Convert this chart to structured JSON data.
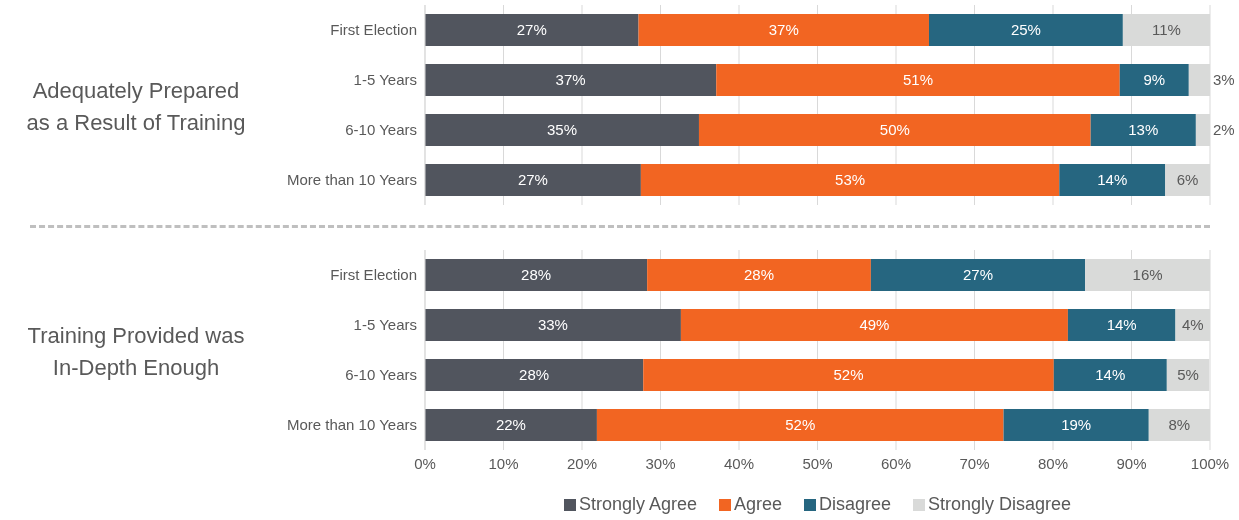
{
  "chart_data": [
    {
      "type": "bar",
      "orientation": "horizontal",
      "stacked": true,
      "annotations": [
        "Adequately Prepared as a Result of Training"
      ],
      "categories": [
        "First Election",
        "1-5 Years",
        "6-10 Years",
        "More than 10 Years"
      ],
      "series": [
        {
          "color": "#51555e",
          "values": [
            27.2,
            37.1,
            34.9,
            27.5
          ],
          "value_labels": [
            "27%",
            "37%",
            "35%",
            "27%"
          ]
        },
        {
          "color": "#f26522",
          "values": [
            37.0,
            51.4,
            49.9,
            53.3
          ],
          "value_labels": [
            "37%",
            "51%",
            "50%",
            "53%"
          ]
        },
        {
          "color": "#266680",
          "values": [
            24.7,
            8.8,
            13.4,
            13.5
          ],
          "value_labels": [
            "25%",
            "9%",
            "13%",
            "14%"
          ]
        },
        {
          "color": "#d9dad9",
          "values": [
            11.1,
            2.7,
            1.8,
            5.7
          ],
          "value_labels": [
            "11%",
            "3%",
            "2%",
            "6%"
          ]
        }
      ],
      "xlim": [
        0,
        100
      ],
      "xticks": [
        {
          "value": 0,
          "label": null
        },
        {
          "value": 10,
          "label": null
        },
        {
          "value": 20,
          "label": null
        },
        {
          "value": 30,
          "label": null
        },
        {
          "value": 40,
          "label": null
        },
        {
          "value": 50,
          "label": null
        },
        {
          "value": 60,
          "label": null
        },
        {
          "value": 70,
          "label": null
        },
        {
          "value": 80,
          "label": null
        },
        {
          "value": 90,
          "label": null
        },
        {
          "value": 100,
          "label": null
        }
      ],
      "grid": "x",
      "tick_labels": "y"
    },
    {
      "type": "bar",
      "orientation": "horizontal",
      "stacked": true,
      "annotations": [
        "Training Provided was In-Depth Enough"
      ],
      "categories": [
        "First Election",
        "1-5 Years",
        "6-10 Years",
        "More than 10 Years"
      ],
      "series": [
        {
          "name": "Strongly Agree",
          "color": "#51555e",
          "values": [
            28.3,
            32.6,
            27.8,
            21.9
          ],
          "value_labels": [
            "28%",
            "33%",
            "28%",
            "22%"
          ]
        },
        {
          "name": "Agree",
          "color": "#f26522",
          "values": [
            28.5,
            49.3,
            52.3,
            51.8
          ],
          "value_labels": [
            "28%",
            "49%",
            "52%",
            "52%"
          ]
        },
        {
          "name": "Disagree",
          "color": "#266680",
          "values": [
            27.3,
            13.7,
            14.4,
            18.5
          ],
          "value_labels": [
            "27%",
            "14%",
            "14%",
            "19%"
          ]
        },
        {
          "name": "Strongly Disagree",
          "color": "#d9dad9",
          "values": [
            15.9,
            4.4,
            5.4,
            7.8
          ],
          "value_labels": [
            "16%",
            "4%",
            "5%",
            "8%"
          ]
        }
      ],
      "xlim": [
        0,
        100
      ],
      "xticks": [
        {
          "value": 0,
          "label": "0%"
        },
        {
          "value": 10,
          "label": "10%"
        },
        {
          "value": 20,
          "label": "20%"
        },
        {
          "value": 30,
          "label": "30%"
        },
        {
          "value": 40,
          "label": "40%"
        },
        {
          "value": 50,
          "label": "50%"
        },
        {
          "value": 60,
          "label": "60%"
        },
        {
          "value": 70,
          "label": "70%"
        },
        {
          "value": 80,
          "label": "80%"
        },
        {
          "value": 90,
          "label": "90%"
        },
        {
          "value": 100,
          "label": "100%"
        }
      ],
      "grid": "x",
      "legend": "bottom"
    }
  ]
}
